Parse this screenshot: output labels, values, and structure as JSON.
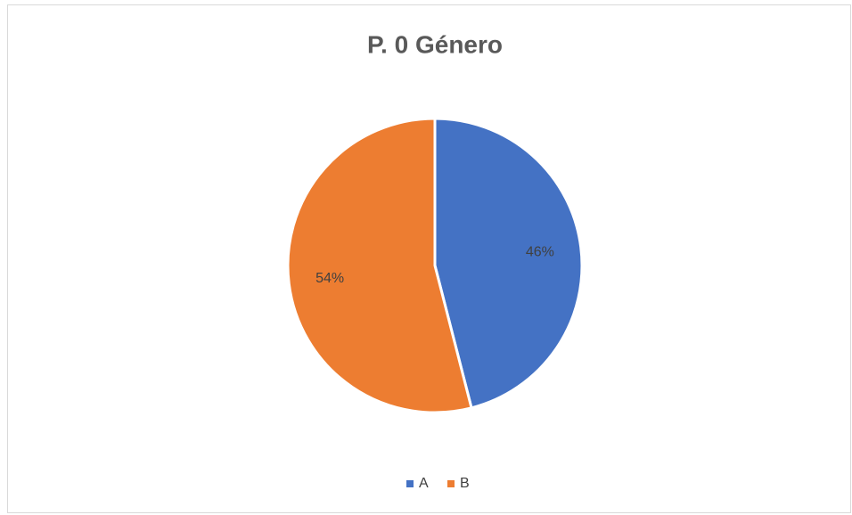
{
  "chart_data": {
    "type": "pie",
    "title": "P. 0 Género",
    "categories": [
      "A",
      "B"
    ],
    "values": [
      46,
      54
    ],
    "value_labels": [
      "46%",
      "54%"
    ],
    "colors": [
      "#4472c4",
      "#ed7d31"
    ],
    "legend": "bottom"
  }
}
